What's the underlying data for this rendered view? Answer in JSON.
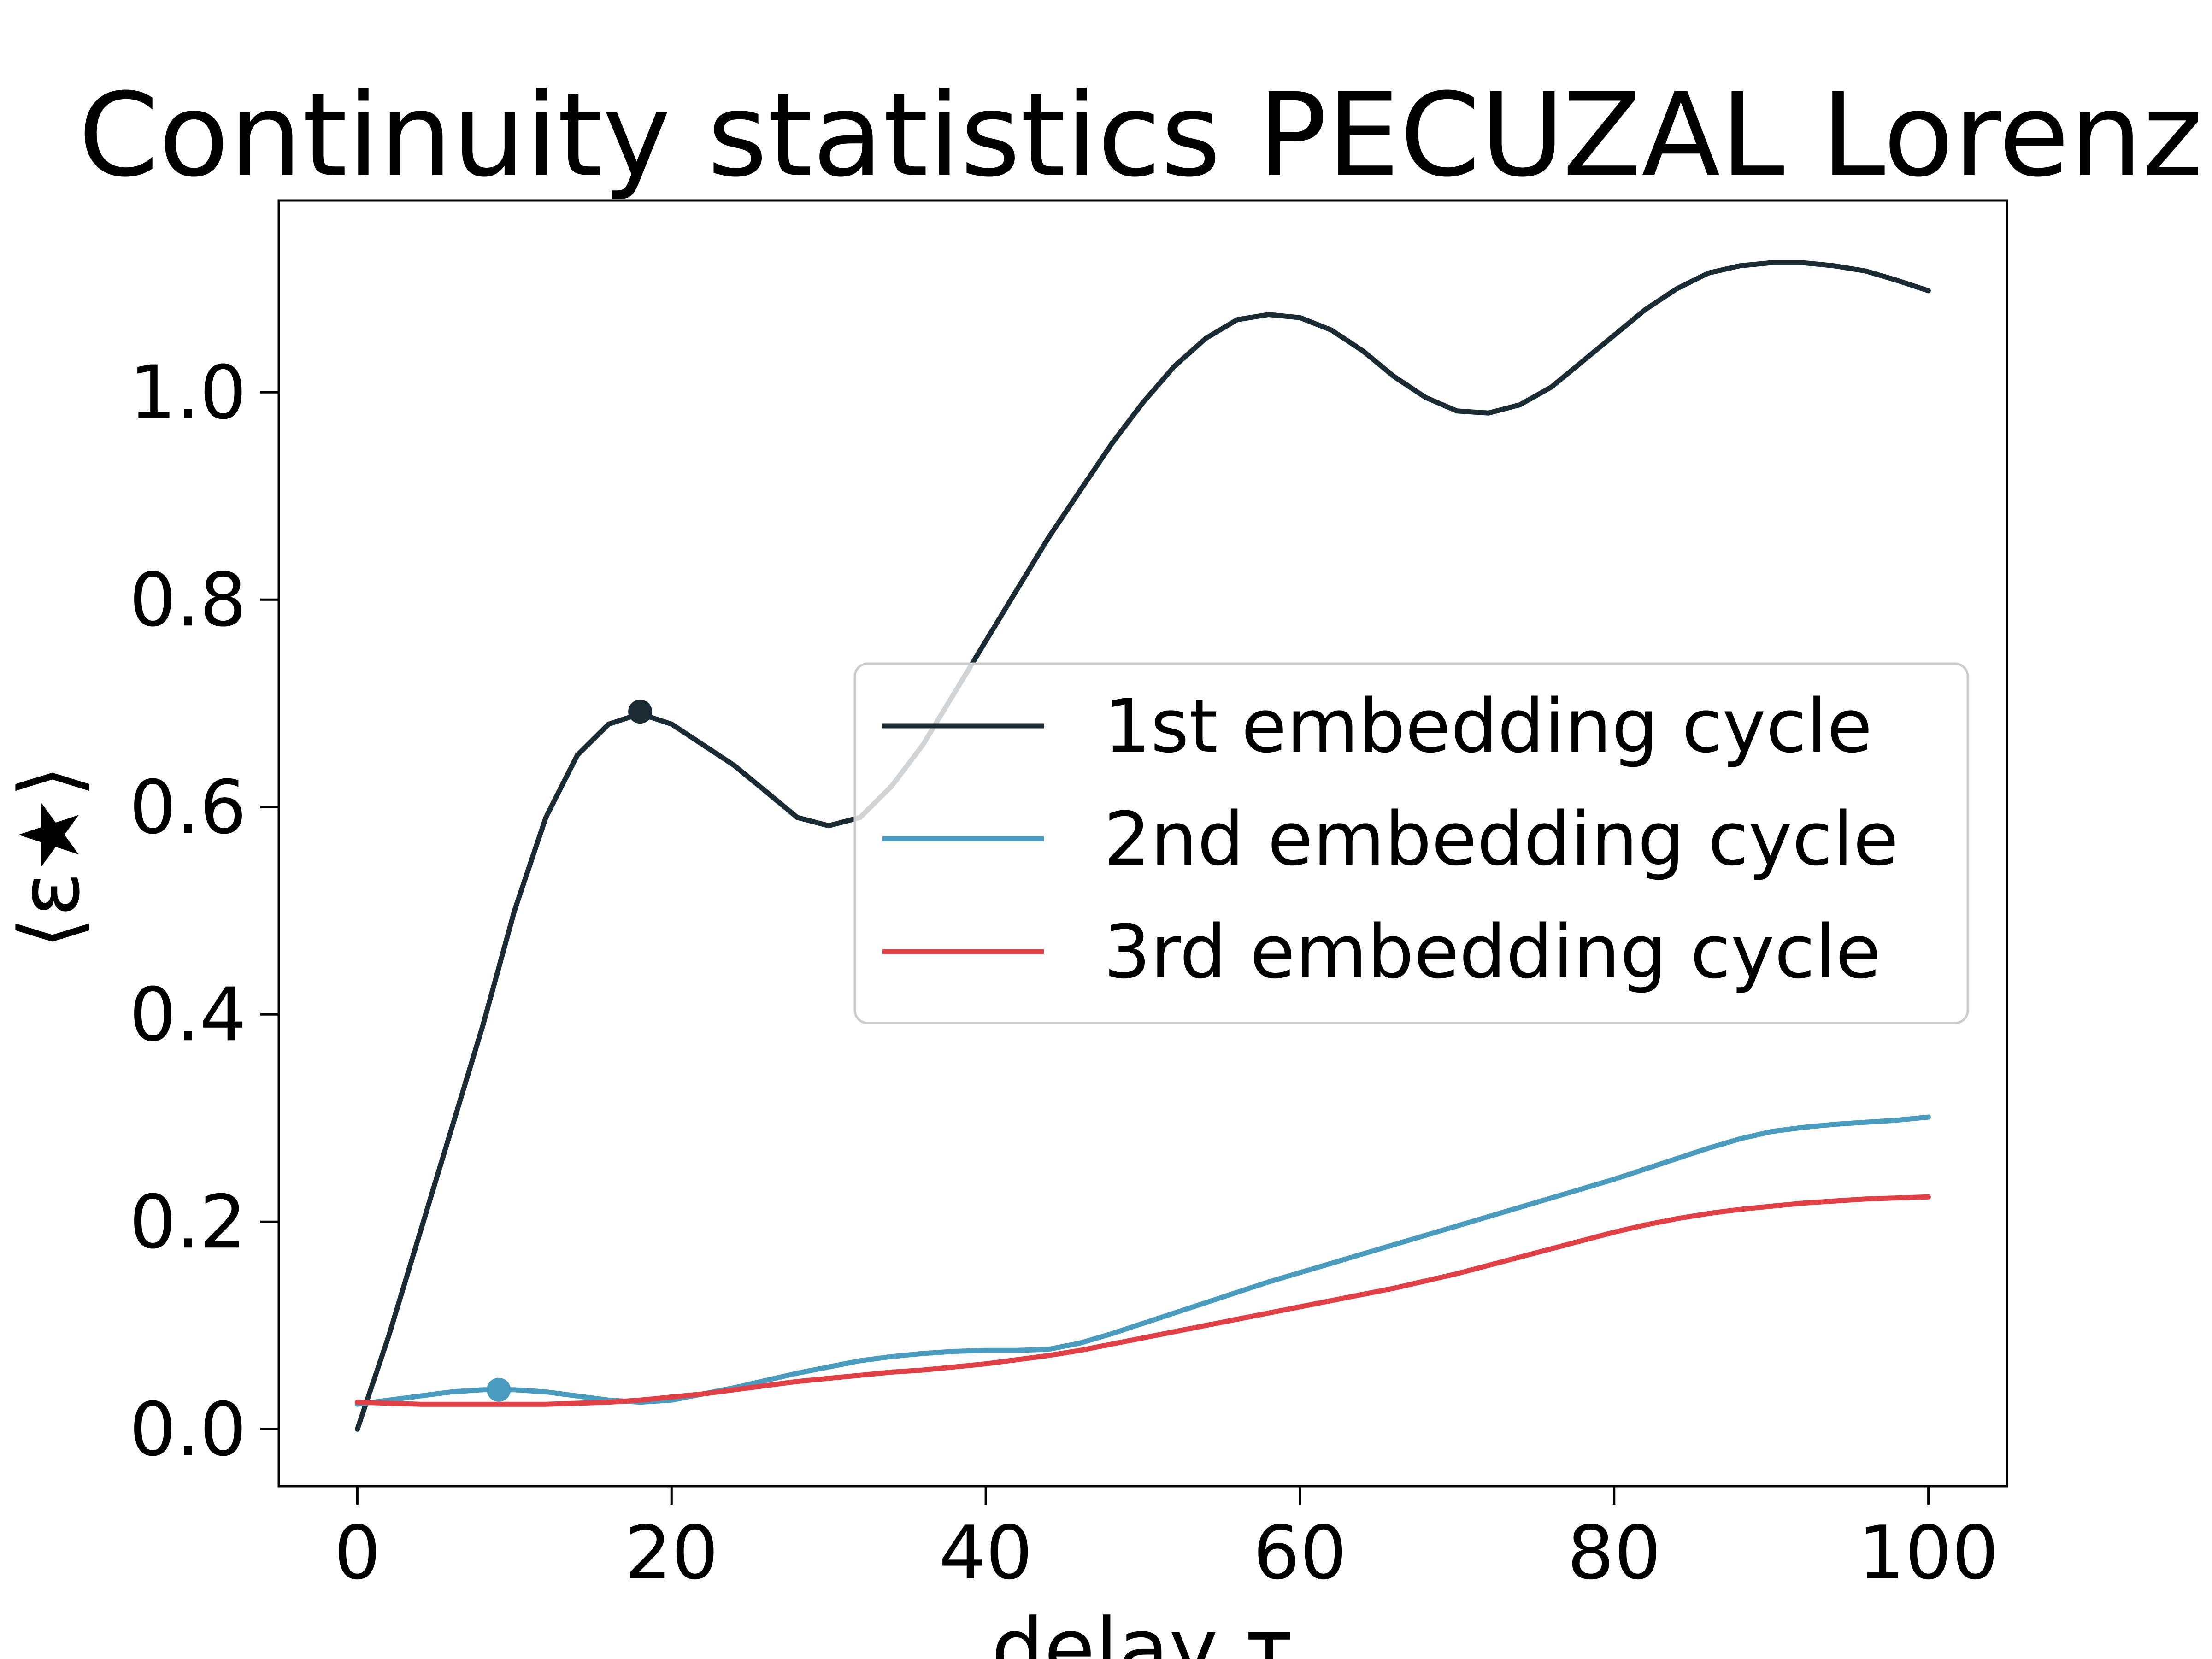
{
  "chart_data": {
    "type": "line",
    "title": "Continuity statistics PECUZAL Lorenz",
    "xlabel": "delay τ",
    "ylabel": "⟨ε★⟩",
    "xlim": [
      -5,
      105
    ],
    "ylim": [
      -0.055,
      1.185
    ],
    "xticks": [
      0,
      20,
      40,
      60,
      80,
      100
    ],
    "xtick_labels": [
      "0",
      "20",
      "40",
      "60",
      "80",
      "100"
    ],
    "yticks": [
      0.0,
      0.2,
      0.4,
      0.6,
      0.8,
      1.0
    ],
    "ytick_labels": [
      "0.0",
      "0.2",
      "0.4",
      "0.6",
      "0.8",
      "1.0"
    ],
    "grid": false,
    "legend_position": "center-right",
    "series": [
      {
        "name": "1st embedding cycle",
        "color": "#1b2b33",
        "x": [
          0,
          2,
          4,
          6,
          8,
          10,
          12,
          14,
          16,
          18,
          20,
          22,
          24,
          26,
          28,
          30,
          32,
          34,
          36,
          38,
          40,
          42,
          44,
          46,
          48,
          50,
          52,
          54,
          56,
          58,
          60,
          62,
          64,
          66,
          68,
          70,
          72,
          74,
          76,
          78,
          80,
          82,
          84,
          86,
          88,
          90,
          92,
          94,
          96,
          98,
          100
        ],
        "y": [
          0.0,
          0.09,
          0.19,
          0.29,
          0.39,
          0.5,
          0.59,
          0.65,
          0.68,
          0.69,
          0.68,
          0.66,
          0.64,
          0.615,
          0.59,
          0.582,
          0.59,
          0.62,
          0.66,
          0.71,
          0.76,
          0.81,
          0.86,
          0.905,
          0.95,
          0.99,
          1.025,
          1.052,
          1.07,
          1.075,
          1.072,
          1.06,
          1.04,
          1.015,
          0.995,
          0.982,
          0.98,
          0.988,
          1.005,
          1.03,
          1.055,
          1.08,
          1.1,
          1.115,
          1.122,
          1.125,
          1.125,
          1.122,
          1.117,
          1.108,
          1.098
        ],
        "marker": {
          "x": 18,
          "y": 0.692
        }
      },
      {
        "name": "2nd embedding cycle",
        "color": "#4a9bbd",
        "x": [
          0,
          2,
          4,
          6,
          8,
          10,
          12,
          14,
          16,
          18,
          20,
          22,
          24,
          26,
          28,
          30,
          32,
          34,
          36,
          38,
          40,
          42,
          44,
          46,
          48,
          50,
          52,
          54,
          56,
          58,
          60,
          62,
          64,
          66,
          68,
          70,
          72,
          74,
          76,
          78,
          80,
          82,
          84,
          86,
          88,
          90,
          92,
          94,
          96,
          98,
          100
        ],
        "y": [
          0.024,
          0.028,
          0.032,
          0.036,
          0.038,
          0.038,
          0.036,
          0.032,
          0.028,
          0.026,
          0.028,
          0.034,
          0.04,
          0.047,
          0.054,
          0.06,
          0.066,
          0.07,
          0.073,
          0.075,
          0.076,
          0.076,
          0.077,
          0.083,
          0.092,
          0.102,
          0.112,
          0.122,
          0.132,
          0.142,
          0.151,
          0.16,
          0.169,
          0.178,
          0.187,
          0.196,
          0.205,
          0.214,
          0.223,
          0.232,
          0.241,
          0.251,
          0.261,
          0.271,
          0.28,
          0.287,
          0.291,
          0.294,
          0.296,
          0.298,
          0.301
        ],
        "marker": {
          "x": 9,
          "y": 0.038
        }
      },
      {
        "name": "3rd embedding cycle",
        "color": "#e04146",
        "x": [
          0,
          2,
          4,
          6,
          8,
          10,
          12,
          14,
          16,
          18,
          20,
          22,
          24,
          26,
          28,
          30,
          32,
          34,
          36,
          38,
          40,
          42,
          44,
          46,
          48,
          50,
          52,
          54,
          56,
          58,
          60,
          62,
          64,
          66,
          68,
          70,
          72,
          74,
          76,
          78,
          80,
          82,
          84,
          86,
          88,
          90,
          92,
          94,
          96,
          98,
          100
        ],
        "y": [
          0.026,
          0.025,
          0.024,
          0.024,
          0.024,
          0.024,
          0.024,
          0.025,
          0.026,
          0.028,
          0.031,
          0.034,
          0.038,
          0.042,
          0.046,
          0.049,
          0.052,
          0.055,
          0.057,
          0.06,
          0.063,
          0.067,
          0.071,
          0.076,
          0.082,
          0.088,
          0.094,
          0.1,
          0.106,
          0.112,
          0.118,
          0.124,
          0.13,
          0.136,
          0.143,
          0.15,
          0.158,
          0.166,
          0.174,
          0.182,
          0.19,
          0.197,
          0.203,
          0.208,
          0.212,
          0.215,
          0.218,
          0.22,
          0.222,
          0.223,
          0.224
        ],
        "marker": null
      }
    ]
  }
}
